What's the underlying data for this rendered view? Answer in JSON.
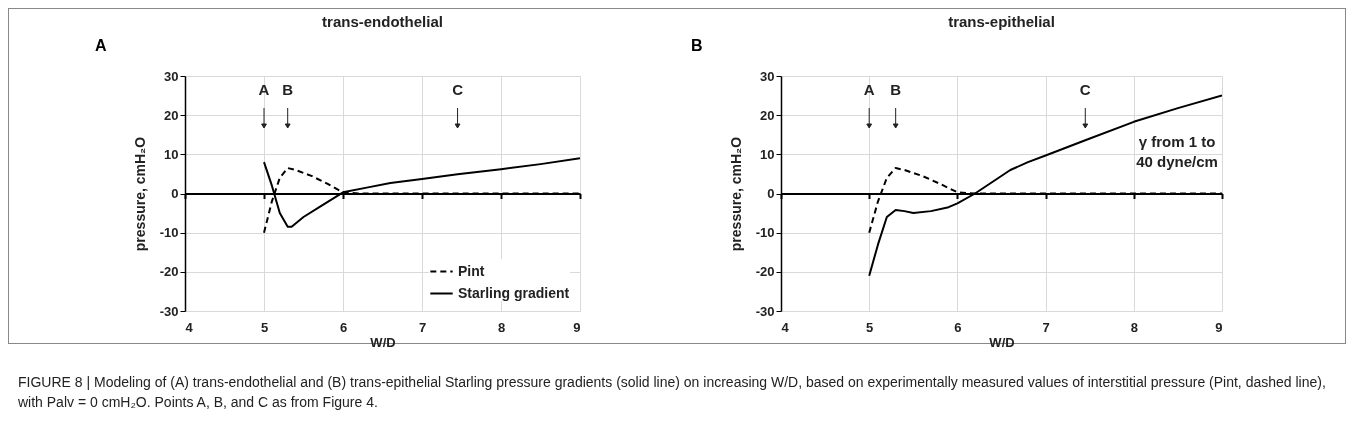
{
  "chart_data": [
    {
      "type": "line",
      "title": "trans-endothelial",
      "xlabel": "W/D",
      "ylabel": "pressure, cmH₂O",
      "xlim": [
        4,
        9
      ],
      "ylim": [
        -30,
        30
      ],
      "xticks": [
        4,
        5,
        6,
        7,
        8,
        9
      ],
      "yticks": [
        -30,
        -20,
        -10,
        0,
        10,
        20,
        30
      ],
      "grid": true,
      "legend": "bottom right",
      "marker": "none",
      "series": [
        {
          "name": "Pint",
          "color": "#000000",
          "line_style": "dashed",
          "x": [
            5,
            5.1,
            5.2,
            5.3,
            5.4,
            5.6,
            5.8,
            6,
            6.2,
            7,
            8,
            9
          ],
          "values": [
            -10,
            -2,
            4,
            6.5,
            6,
            4.5,
            2.5,
            0.3,
            0,
            0,
            0,
            0
          ]
        },
        {
          "name": "Starling gradient",
          "color": "#000000",
          "line_style": "solid",
          "x": [
            5,
            5.1,
            5.2,
            5.3,
            5.35,
            5.5,
            5.7,
            6,
            6.3,
            6.6,
            7,
            7.45,
            8,
            8.5,
            9
          ],
          "values": [
            8,
            2,
            -5,
            -8.5,
            -8.5,
            -6,
            -3.5,
            0.3,
            1.5,
            2.7,
            3.7,
            4.9,
            6.2,
            7.5,
            9
          ]
        }
      ],
      "annotations": [
        "A",
        {
          "text": "A",
          "x": 5
        },
        {
          "text": "B",
          "x": 5.3
        },
        {
          "text": "C",
          "x": 7.45
        }
      ]
    },
    {
      "type": "line",
      "title": "trans-epithelial",
      "xlabel": "W/D",
      "ylabel": "pressure, cmH₂O",
      "xlim": [
        4,
        9
      ],
      "ylim": [
        -30,
        30
      ],
      "xticks": [
        4,
        5,
        6,
        7,
        8,
        9
      ],
      "yticks": [
        -30,
        -20,
        -10,
        0,
        10,
        20,
        30
      ],
      "grid": true,
      "marker": "none",
      "series": [
        {
          "color": "#000000",
          "line_style": "dashed",
          "x": [
            5,
            5.1,
            5.2,
            5.3,
            5.4,
            5.6,
            5.8,
            6,
            6.2,
            7,
            8,
            9
          ],
          "values": [
            -10,
            -2,
            4,
            6.5,
            6,
            4.5,
            2.5,
            0.3,
            0,
            0,
            0,
            0
          ]
        },
        {
          "color": "#000000",
          "line_style": "solid",
          "x": [
            5,
            5.1,
            5.2,
            5.3,
            5.4,
            5.5,
            5.7,
            5.9,
            6,
            6.2,
            6.4,
            6.6,
            6.8,
            7,
            7.45,
            8,
            8.5,
            9
          ],
          "values": [
            -21,
            -13,
            -6,
            -4.2,
            -4.5,
            -5,
            -4.5,
            -3.5,
            -2.5,
            0,
            3,
            6,
            8,
            9.7,
            13.6,
            18.3,
            21.8,
            25
          ]
        }
      ],
      "annotations": [
        "B",
        {
          "text": "A",
          "x": 5
        },
        {
          "text": "B",
          "x": 5.3
        },
        {
          "text": "C",
          "x": 7.45
        },
        "γ from 1 to\n40 dyne/cm",
        "FIGURE 8 | Modeling of (A) trans-endothelial and (B) trans-epithelial Starling pressure gradients (solid line) on increasing W/D, based on experimentally measured values of interstitial pressure (Pint, dashed line), with Palv = 0 cmH₂O. Points A, B, and C as from Figure 4."
      ]
    }
  ]
}
